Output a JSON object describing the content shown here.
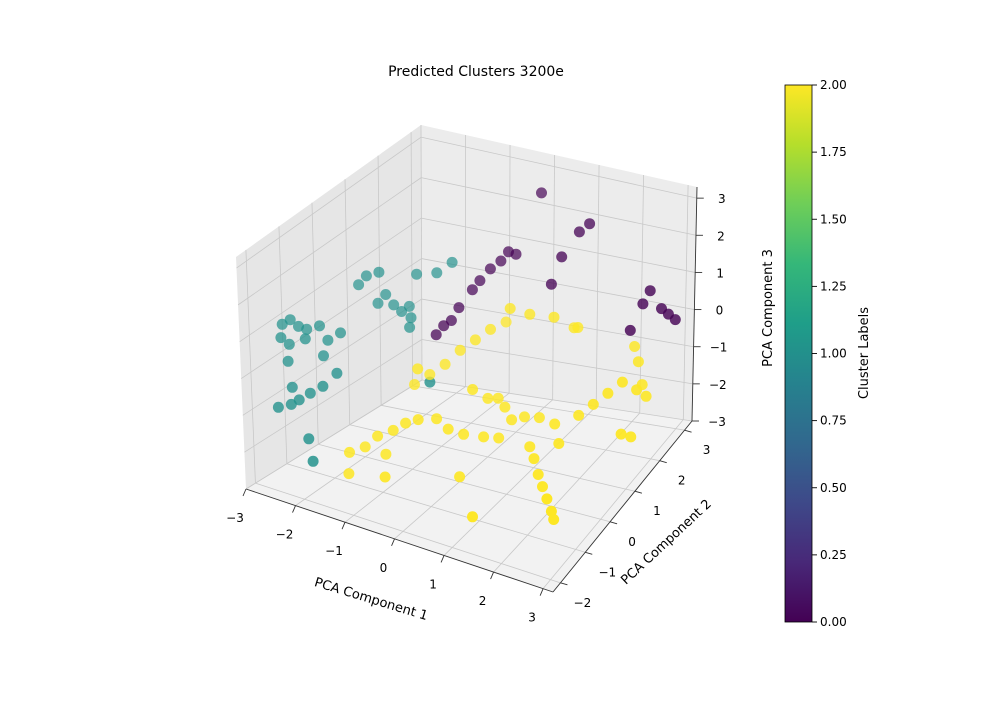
{
  "chart_data": {
    "type": "scatter",
    "title": "Predicted Clusters 3200e",
    "xlabel": "PCA Component 1",
    "ylabel": "PCA Component 2",
    "zlabel": "PCA Component 3",
    "xlim": [
      -3,
      3.2
    ],
    "ylim": [
      -2.3,
      3.3
    ],
    "zlim": [
      -3,
      3.3
    ],
    "x_ticks": [
      "−3",
      "−2",
      "−1",
      "0",
      "1",
      "2",
      "3"
    ],
    "y_ticks": [
      "−2",
      "−1",
      "0",
      "1",
      "2",
      "3"
    ],
    "z_ticks": [
      "−3",
      "−2",
      "−1",
      "0",
      "1",
      "2",
      "3"
    ],
    "grid": true,
    "colorbar": {
      "label": "Cluster Labels",
      "min": 0.0,
      "max": 2.0,
      "ticks": [
        "0.00",
        "0.25",
        "0.50",
        "0.75",
        "1.00",
        "1.25",
        "1.50",
        "1.75",
        "2.00"
      ],
      "colormap": [
        "#440154",
        "#482878",
        "#3e4989",
        "#31688e",
        "#26828e",
        "#1f9e89",
        "#35b779",
        "#6ece58",
        "#b5de2b",
        "#fde725"
      ]
    },
    "series": [
      {
        "name": "",
        "cluster": 0,
        "color": "#440154",
        "points": [
          [
            1.0,
            2.0,
            1.8
          ],
          [
            1.2,
            2.3,
            2.3
          ],
          [
            1.3,
            2.5,
            2.4
          ],
          [
            0.9,
            1.8,
            1.2
          ],
          [
            2.5,
            2.5,
            0.6
          ],
          [
            2.6,
            2.6,
            0.9
          ],
          [
            2.8,
            2.7,
            0.4
          ],
          [
            2.9,
            2.8,
            0.2
          ],
          [
            3.0,
            2.9,
            0.0
          ],
          [
            2.4,
            2.2,
            0.1
          ],
          [
            -0.3,
            1.6,
            1.4
          ],
          [
            -0.2,
            1.8,
            1.5
          ],
          [
            -0.5,
            1.3,
            1.0
          ],
          [
            -0.6,
            1.0,
            0.7
          ],
          [
            -0.1,
            1.9,
            1.7
          ],
          [
            0.0,
            2.0,
            1.6
          ],
          [
            -0.4,
            1.4,
            1.2
          ],
          [
            -0.7,
            0.9,
            0.4
          ],
          [
            -0.8,
            0.8,
            0.3
          ],
          [
            -0.9,
            0.7,
            0.1
          ],
          [
            0.3,
            2.4,
            3.0
          ]
        ]
      },
      {
        "name": "",
        "cluster": 1,
        "color": "#21918c",
        "points": [
          [
            -3.0,
            -1.0,
            0.7
          ],
          [
            -2.9,
            -0.9,
            0.8
          ],
          [
            -2.8,
            -0.8,
            0.6
          ],
          [
            -2.7,
            -0.7,
            0.5
          ],
          [
            -2.6,
            -0.9,
            0.4
          ],
          [
            -2.8,
            -1.1,
            0.3
          ],
          [
            -2.9,
            -1.2,
            0.5
          ],
          [
            -2.5,
            -0.6,
            0.6
          ],
          [
            -2.4,
            -0.5,
            0.2
          ],
          [
            -2.3,
            -0.8,
            0.0
          ],
          [
            -2.7,
            -1.3,
            0.0
          ],
          [
            -2.2,
            -0.4,
            0.4
          ],
          [
            -2.5,
            -1.5,
            -0.5
          ],
          [
            -2.3,
            -1.6,
            -0.7
          ],
          [
            -2.2,
            -1.4,
            -0.6
          ],
          [
            -2.0,
            -1.3,
            -0.4
          ],
          [
            -1.9,
            -1.0,
            -0.2
          ],
          [
            -2.4,
            -1.7,
            -0.8
          ],
          [
            -2.6,
            -1.8,
            -0.9
          ],
          [
            -2.0,
            0.5,
            0.7
          ],
          [
            -1.9,
            0.6,
            0.9
          ],
          [
            -1.8,
            0.7,
            0.6
          ],
          [
            -1.7,
            0.8,
            0.4
          ],
          [
            -1.6,
            0.9,
            0.5
          ],
          [
            -1.5,
            0.8,
            0.3
          ],
          [
            -1.4,
            0.6,
            0.2
          ],
          [
            -2.1,
            0.3,
            1.5
          ],
          [
            -1.9,
            0.4,
            1.6
          ],
          [
            -1.5,
            1.0,
            1.3
          ],
          [
            -2.2,
            0.2,
            1.3
          ],
          [
            -1.2,
            1.2,
            1.3
          ],
          [
            -1.0,
            1.4,
            1.5
          ],
          [
            -0.6,
            0.0,
            -0.6
          ],
          [
            -2.0,
            -1.8,
            -1.5
          ],
          [
            -1.8,
            -2.0,
            -1.9
          ]
        ]
      },
      {
        "name": "",
        "cluster": 2,
        "color": "#fde725",
        "points": [
          [
            0.8,
            1.2,
            0.8
          ],
          [
            1.2,
            1.4,
            0.7
          ],
          [
            0.5,
            1.0,
            1.0
          ],
          [
            0.2,
            0.8,
            0.5
          ],
          [
            0.0,
            0.6,
            0.3
          ],
          [
            -0.2,
            0.4,
            0.1
          ],
          [
            -0.4,
            0.2,
            -0.2
          ],
          [
            -0.6,
            0.0,
            -0.4
          ],
          [
            -0.8,
            -0.2,
            -0.6
          ],
          [
            0.3,
            0.0,
            -0.5
          ],
          [
            0.5,
            0.2,
            -0.8
          ],
          [
            0.6,
            0.4,
            -0.9
          ],
          [
            0.8,
            0.3,
            -1.0
          ],
          [
            1.0,
            0.2,
            -1.2
          ],
          [
            1.1,
            0.5,
            -1.3
          ],
          [
            1.3,
            0.7,
            -1.4
          ],
          [
            0.9,
            -0.1,
            -1.5
          ],
          [
            0.7,
            -0.3,
            -1.4
          ],
          [
            0.4,
            -0.5,
            -1.3
          ],
          [
            0.2,
            -0.7,
            -1.1
          ],
          [
            -0.1,
            -0.6,
            -1.0
          ],
          [
            -0.3,
            -0.9,
            -0.9
          ],
          [
            -0.5,
            -1.0,
            -1.0
          ],
          [
            -0.7,
            -1.1,
            -1.2
          ],
          [
            -0.9,
            -1.3,
            -1.3
          ],
          [
            -1.1,
            -1.4,
            -1.6
          ],
          [
            -1.3,
            -1.6,
            -1.7
          ],
          [
            -0.8,
            -1.2,
            -1.8
          ],
          [
            1.5,
            0.0,
            -1.6
          ],
          [
            1.7,
            -0.2,
            -1.7
          ],
          [
            1.9,
            -0.4,
            -1.9
          ],
          [
            2.1,
            -0.6,
            -2.0
          ],
          [
            2.3,
            -0.8,
            -2.1
          ],
          [
            2.5,
            -1.0,
            -2.2
          ],
          [
            2.6,
            -1.1,
            -2.3
          ],
          [
            2.0,
            0.2,
            -1.5
          ],
          [
            1.8,
            0.4,
            -1.2
          ],
          [
            2.2,
            0.6,
            -1.0
          ],
          [
            2.4,
            0.8,
            -0.8
          ],
          [
            2.6,
            1.0,
            -0.6
          ],
          [
            2.8,
            1.2,
            -0.4
          ],
          [
            3.0,
            1.4,
            -0.7
          ],
          [
            3.1,
            1.6,
            -1.0
          ],
          [
            2.9,
            1.8,
            -0.9
          ],
          [
            2.7,
            2.0,
            -0.5
          ],
          [
            2.5,
            2.2,
            -0.3
          ],
          [
            3.0,
            0.8,
            -1.4
          ],
          [
            3.1,
            1.0,
            -1.6
          ],
          [
            0.1,
            1.5,
            0.2
          ],
          [
            1.4,
            1.8,
            0.2
          ],
          [
            1.6,
            1.6,
            0.4
          ],
          [
            -0.6,
            -0.4,
            0.0
          ],
          [
            -1.2,
            -1.8,
            -2.1
          ],
          [
            -0.4,
            -1.9,
            -1.8
          ],
          [
            1.2,
            -1.6,
            -2.4
          ],
          [
            0.6,
            -1.0,
            -2.0
          ]
        ]
      }
    ]
  }
}
